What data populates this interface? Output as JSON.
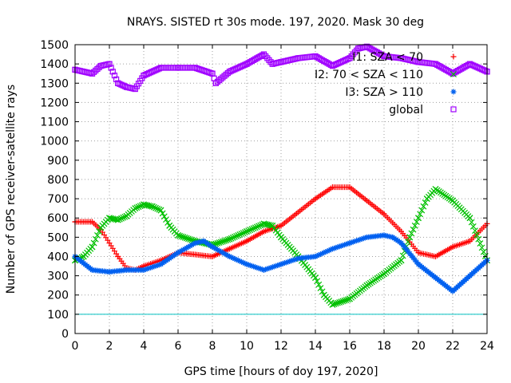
{
  "chart_data": {
    "type": "scatter",
    "title": "NRAYS. SISTED rt 30s mode. 197, 2020. Mask 30 deg",
    "xlabel": "GPS time [hours of doy 197, 2020]",
    "ylabel": "Number of GPS receiver-satellite rays",
    "xlim": [
      0,
      24
    ],
    "ylim": [
      0,
      1500
    ],
    "xticks": [
      0,
      2,
      4,
      6,
      8,
      10,
      12,
      14,
      16,
      18,
      20,
      22,
      24
    ],
    "yticks": [
      0,
      100,
      200,
      300,
      400,
      500,
      600,
      700,
      800,
      900,
      1000,
      1100,
      1200,
      1300,
      1400,
      1500
    ],
    "grid": true,
    "legend_position": "top-right",
    "reference_line": {
      "y": 100,
      "color": "#00c0c0"
    },
    "series": [
      {
        "name": "I1: SZA < 70",
        "color": "#ff0000",
        "marker": "plus",
        "x": [
          0,
          1,
          1.5,
          2,
          2.5,
          3,
          3.5,
          4,
          5,
          6,
          7,
          8,
          9,
          10,
          11,
          12,
          13,
          14,
          15,
          16,
          17,
          18,
          19,
          20,
          21,
          22,
          23,
          24
        ],
        "y": [
          580,
          580,
          540,
          470,
          400,
          340,
          330,
          350,
          380,
          420,
          410,
          400,
          440,
          480,
          530,
          560,
          630,
          700,
          760,
          760,
          690,
          620,
          530,
          420,
          400,
          450,
          480,
          570
        ]
      },
      {
        "name": "I2: 70 < SZA < 110",
        "color": "#00c000",
        "marker": "cross",
        "x": [
          0,
          0.5,
          1,
          1.5,
          2,
          2.5,
          3,
          3.5,
          4,
          4.5,
          5,
          5.5,
          6,
          7,
          8,
          9,
          10,
          11,
          11.5,
          12,
          13,
          14,
          14.5,
          15,
          16,
          17,
          18,
          19,
          19.5,
          20,
          20.5,
          21,
          22,
          23,
          24
        ],
        "y": [
          380,
          400,
          450,
          550,
          600,
          590,
          610,
          650,
          670,
          660,
          640,
          560,
          510,
          480,
          460,
          490,
          530,
          570,
          560,
          500,
          400,
          290,
          200,
          150,
          180,
          250,
          310,
          380,
          500,
          600,
          700,
          750,
          690,
          600,
          380
        ]
      },
      {
        "name": "I3: SZA > 110",
        "color": "#0060f0",
        "marker": "star",
        "x": [
          0,
          1,
          2,
          3,
          4,
          5,
          6,
          7,
          7.5,
          8,
          9,
          10,
          11,
          12,
          13,
          14,
          15,
          16,
          17,
          18,
          18.5,
          19,
          20,
          21,
          22,
          23,
          24
        ],
        "y": [
          400,
          330,
          320,
          330,
          330,
          360,
          420,
          470,
          480,
          450,
          400,
          360,
          330,
          360,
          390,
          400,
          440,
          470,
          500,
          510,
          500,
          470,
          360,
          290,
          220,
          300,
          380
        ]
      },
      {
        "name": "global",
        "color": "#a000ff",
        "marker": "square",
        "x": [
          0,
          1,
          1.5,
          2,
          2.5,
          3,
          3.5,
          4,
          5,
          6,
          7,
          8,
          8.2,
          9,
          10,
          11,
          11.5,
          12,
          13,
          14,
          15,
          16,
          16.5,
          17,
          18,
          19,
          20,
          21,
          22,
          23,
          24
        ],
        "y": [
          1370,
          1350,
          1390,
          1400,
          1300,
          1280,
          1270,
          1340,
          1380,
          1380,
          1380,
          1350,
          1300,
          1360,
          1400,
          1450,
          1400,
          1410,
          1430,
          1440,
          1390,
          1430,
          1480,
          1490,
          1440,
          1430,
          1410,
          1400,
          1350,
          1400,
          1360
        ]
      }
    ]
  }
}
